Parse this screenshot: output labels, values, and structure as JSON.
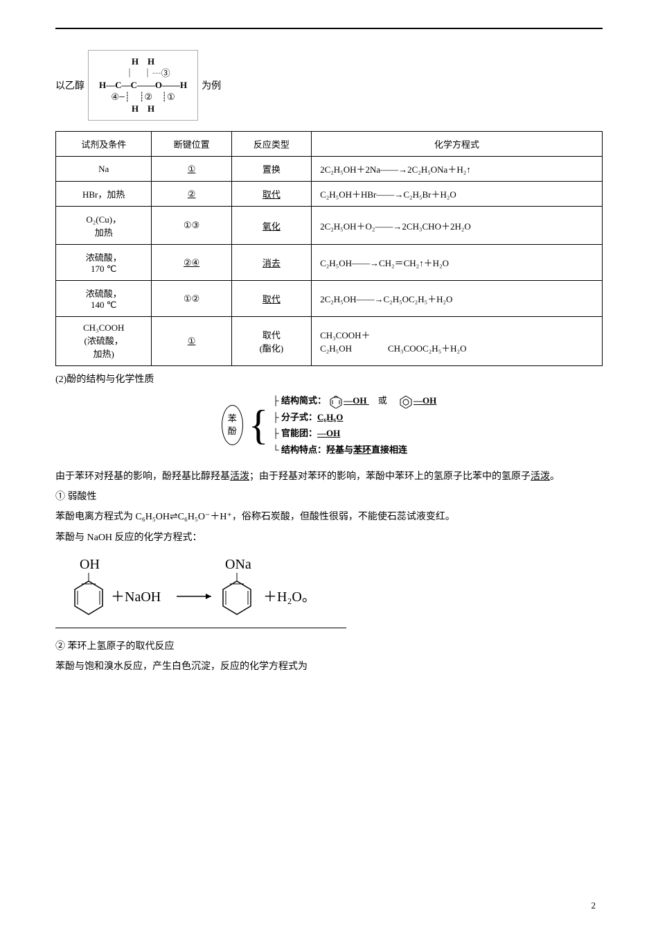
{
  "intro": {
    "prefix": "以乙醇",
    "suffix": "为例",
    "diagram_top": "H　H",
    "diagram_mark3": "┄③",
    "diagram_mid": "H—C—C——O——H",
    "diagram_marks": "④┄┊　┊②　┊①",
    "diagram_bot": "H　H"
  },
  "table": {
    "headers": [
      "试剂及条件",
      "断键位置",
      "反应类型",
      "化学方程式"
    ],
    "rows": [
      {
        "reagent": "Na",
        "bond": "①",
        "bond_u": true,
        "type": "置换",
        "type_u": false,
        "eq": "2C₂H₅OH＋2Na――→2C₂H₅ONa＋H₂↑"
      },
      {
        "reagent": "HBr，加热",
        "bond": "②",
        "bond_u": true,
        "type": "取代",
        "type_u": true,
        "eq": "C₂H₅OH＋HBr――→C₂H₅Br＋H₂O"
      },
      {
        "reagent": "O₂(Cu)，\n加热",
        "bond": "①③",
        "bond_u": false,
        "type": "氧化",
        "type_u": true,
        "eq": "2C₂H₅OH＋O₂――→2CH₃CHO＋2H₂O"
      },
      {
        "reagent": "浓硫酸，\n170 ℃",
        "bond": "②④",
        "bond_u": true,
        "type": "消去",
        "type_u": true,
        "eq": "C₂H₅OH――→CH₂＝CH₂↑＋H₂O"
      },
      {
        "reagent": "浓硫酸，\n140 ℃",
        "bond": "①②",
        "bond_u": false,
        "type": "取代",
        "type_u": true,
        "eq": "2C₂H₅OH――→C₂H₅OC₂H₅＋H₂O"
      },
      {
        "reagent": "CH₃COOH\n(浓硫酸，\n加热)",
        "bond": "①",
        "bond_u": true,
        "type": "取代\n(酯化)",
        "type_u": false,
        "eq": "CH₃COOH＋\nC₂H₅OH　　　　CH₃COOC₂H₅＋H₂O"
      }
    ]
  },
  "section2": "(2)酚的结构与化学性质",
  "phenol": {
    "label1": "苯",
    "label2": "酚",
    "line1_label": "结构简式：",
    "line1_or": "或",
    "line2_label": "分子式：",
    "line2_val": "C₆H₆O",
    "line3_label": "官能团：",
    "line3_val": "—OH",
    "line4_label": "结构特点：羟基与",
    "line4_val": "苯环",
    "line4_suffix": "直接相连"
  },
  "para1a": "由于苯环对羟基的影响，酚羟基比醇羟基",
  "para1b": "活泼",
  "para1c": "；由于羟基对苯环的影响，苯酚中苯环上的氢原子比苯中的氢原子",
  "para1d": "活泼",
  "para1e": "。",
  "item1": "① 弱酸性",
  "para2": "苯酚电离方程式为 C₆H₅OH⇌C₆H₅O⁻＋H⁺，俗称石炭酸，但酸性很弱，不能使石蕊试液变红。",
  "para3": "苯酚与 NaOH 反应的化学方程式：",
  "reaction": {
    "label_oh": "OH",
    "label_ona": "ONa",
    "plus_naoh": "＋NaOH",
    "arrow": "――→",
    "plus_h2o": "＋H₂O。"
  },
  "item2": "② 苯环上氢原子的取代反应",
  "para4": "苯酚与饱和溴水反应，产生白色沉淀，反应的化学方程式为",
  "page_number": "2"
}
